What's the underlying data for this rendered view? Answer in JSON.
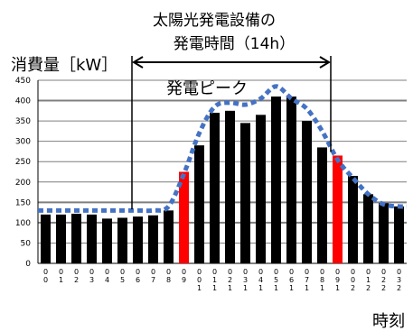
{
  "chart_data": {
    "type": "bar",
    "title_line1": "太陽光発電設備の",
    "title_line2": "発電時間（14h）",
    "ylabel": "消費量［kW］",
    "xlabel": "時刻",
    "annotation": "発電ピーク",
    "ylim": [
      0,
      450
    ],
    "yticks": [
      0,
      50,
      100,
      150,
      200,
      250,
      300,
      350,
      400,
      450
    ],
    "grid": true,
    "categories": [
      "0:00",
      "1:00",
      "2:00",
      "3:00",
      "4:00",
      "5:00",
      "6:00",
      "7:00",
      "8:00",
      "9:00",
      "10:00",
      "11:00",
      "12:00",
      "13:00",
      "14:00",
      "15:00",
      "16:00",
      "17:00",
      "18:00",
      "19:00",
      "20:00",
      "21:00",
      "22:00",
      "23:00"
    ],
    "tick_top": [
      "0",
      "0",
      "0",
      "0",
      "0",
      "0",
      "0",
      "0",
      "0",
      "0",
      "0",
      "0",
      "0",
      "0",
      "0",
      "0",
      "0",
      "0",
      "0",
      "0",
      "0",
      "0",
      "0",
      "0"
    ],
    "tick_mid": [
      "0",
      "1",
      "2",
      "3",
      "4",
      "5",
      "6",
      "7",
      "8",
      "9",
      "0",
      "1",
      "2",
      "3",
      "4",
      "5",
      "6",
      "7",
      "8",
      "9",
      "0",
      "1",
      "2",
      "3"
    ],
    "tick_bot": [
      "",
      "",
      "",
      "",
      "",
      "",
      "",
      "",
      "",
      "",
      "1",
      "1",
      "1",
      "1",
      "1",
      "1",
      "1",
      "1",
      "1",
      "1",
      "2",
      "2",
      "2",
      "2"
    ],
    "values": [
      120,
      120,
      122,
      120,
      110,
      112,
      115,
      118,
      130,
      225,
      290,
      370,
      375,
      345,
      365,
      410,
      410,
      350,
      285,
      265,
      215,
      170,
      148,
      140
    ],
    "highlight_indices": [
      9,
      19
    ],
    "colors": {
      "bar": "#000000",
      "highlight": "#ff0000",
      "curve": "#4472c4",
      "grid": "#7f7f7f"
    },
    "curve": [
      130,
      130,
      130,
      130,
      130,
      130,
      130,
      130,
      140,
      220,
      320,
      385,
      395,
      390,
      405,
      435,
      405,
      380,
      325,
      255,
      210,
      170,
      145,
      140
    ],
    "generation_window": {
      "start_hour": 6,
      "end_hour": 19
    }
  }
}
